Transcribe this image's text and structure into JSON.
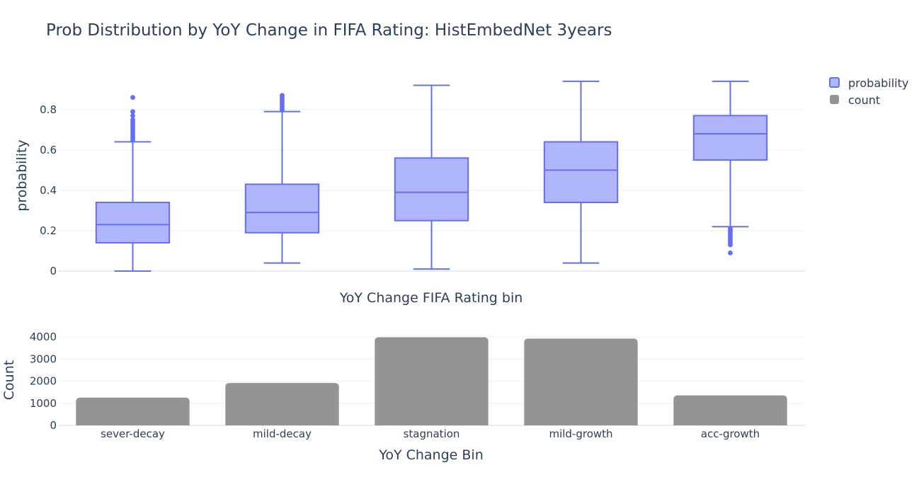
{
  "colors": {
    "box_line": "#636efa",
    "box_fill": "#b1b6fc",
    "bar": "#949494",
    "grid": "#ebf0f8",
    "text": "#2a3f5f"
  },
  "chart_data": [
    {
      "type": "box",
      "title": "Prob Distribution by YoY Change in FIFA Rating: HistEmbedNet 3years",
      "xlabel": "YoY Change FIFA Rating bin",
      "ylabel": "probability",
      "ylim": [
        0,
        0.95
      ],
      "yticks": [
        0,
        0.2,
        0.4,
        0.6,
        0.8
      ],
      "ytick_labels": [
        "0",
        "0.2",
        "0.4",
        "0.6",
        "0.8"
      ],
      "grid": true,
      "legend": {
        "position": "top-right",
        "entries": [
          "probability",
          "count"
        ]
      },
      "categories": [
        "sever-decay",
        "mild-decay",
        "stagnation",
        "mild-growth",
        "acc-growth"
      ],
      "boxes": [
        {
          "min": 0.0,
          "q1": 0.14,
          "median": 0.23,
          "q3": 0.34,
          "max": 0.64,
          "outliers": [
            0.65,
            0.66,
            0.67,
            0.68,
            0.69,
            0.7,
            0.71,
            0.72,
            0.73,
            0.74,
            0.75,
            0.77,
            0.79,
            0.86
          ]
        },
        {
          "min": 0.04,
          "q1": 0.19,
          "median": 0.29,
          "q3": 0.43,
          "max": 0.79,
          "outliers": [
            0.8,
            0.81,
            0.82,
            0.83,
            0.84,
            0.85,
            0.86,
            0.87
          ]
        },
        {
          "min": 0.01,
          "q1": 0.25,
          "median": 0.39,
          "q3": 0.56,
          "max": 0.92,
          "outliers": []
        },
        {
          "min": 0.04,
          "q1": 0.34,
          "median": 0.5,
          "q3": 0.64,
          "max": 0.94,
          "outliers": []
        },
        {
          "min": 0.22,
          "q1": 0.55,
          "median": 0.68,
          "q3": 0.77,
          "max": 0.94,
          "outliers": [
            0.09,
            0.13,
            0.14,
            0.15,
            0.16,
            0.17,
            0.18,
            0.19,
            0.2,
            0.21
          ]
        }
      ]
    },
    {
      "type": "bar",
      "name": "count",
      "xlabel": "YoY Change Bin",
      "ylabel": "Count",
      "ylim": [
        0,
        4200
      ],
      "yticks": [
        0,
        1000,
        2000,
        3000,
        4000
      ],
      "ytick_labels": [
        "0",
        "1000",
        "2000",
        "3000",
        "4000"
      ],
      "grid": true,
      "categories": [
        "sever-decay",
        "mild-decay",
        "stagnation",
        "mild-growth",
        "acc-growth"
      ],
      "values": [
        1260,
        1920,
        3990,
        3930,
        1360
      ]
    }
  ]
}
